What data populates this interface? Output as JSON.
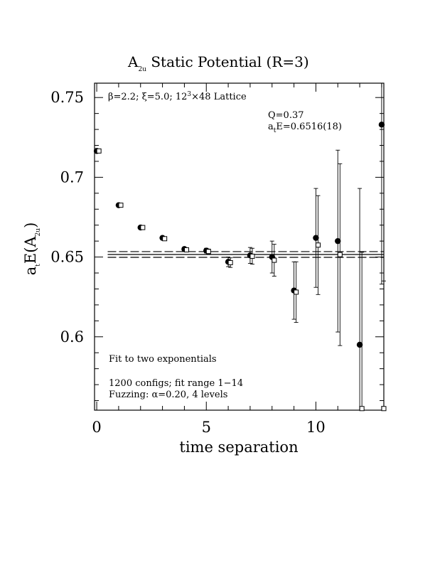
{
  "chart_data": {
    "type": "scatter",
    "title": "A2u Static Potential (R=3)",
    "title_parts": {
      "base": "A",
      "sub": "2u",
      "rest": " Static Potential (R=3)"
    },
    "xlabel": "time separation",
    "ylabel_parts": {
      "a": "a",
      "a_sub": "t",
      "mid": "E(A",
      "sub": "2u",
      "end": ")"
    },
    "xlim": [
      -0.1,
      13.1
    ],
    "ylim": [
      0.554,
      0.759
    ],
    "x_ticks": [
      0,
      5,
      10
    ],
    "x_tick_labels": [
      "0",
      "5",
      "10"
    ],
    "y_ticks": [
      0.6,
      0.65,
      0.7,
      0.75
    ],
    "y_tick_labels": [
      "0.6",
      "0.65",
      "0.7",
      "0.75"
    ],
    "grid": false,
    "annotation_lattice": {
      "beta": "β=2.2; ",
      "xi": "ξ=5.0; ",
      "size": "12",
      "sup": "3",
      "rest": "×48 Lattice"
    },
    "annotation_Q": "Q=0.37",
    "annotation_fit_energy": {
      "a": "a",
      "sub": "t",
      "rest": "E=0.6516(18)"
    },
    "annotation_method": "Fit to two exponentials",
    "annotation_configs": "1200 configs; fit range 1−14",
    "annotation_fuzzing": "Fuzzing: α=0.20, 4 levels",
    "fit": {
      "value": 0.6516,
      "error": 0.0018,
      "x_range": [
        0.5,
        13.1
      ]
    },
    "series": [
      {
        "marker": "filled-circle",
        "x": [
          0,
          1,
          2,
          3,
          4,
          5,
          6,
          7,
          8,
          9,
          10,
          11,
          12,
          13
        ],
        "y": [
          0.7165,
          0.6825,
          0.6685,
          0.662,
          0.655,
          0.654,
          0.647,
          0.651,
          0.65,
          0.629,
          0.662,
          0.66,
          0.595,
          0.733
        ],
        "err": [
          0.001,
          0.001,
          0.001,
          0.001,
          0.001,
          0.0015,
          0.003,
          0.005,
          0.01,
          0.018,
          0.031,
          0.057,
          0.098,
          0.1
        ]
      },
      {
        "marker": "open-square",
        "x": [
          0.1,
          1.1,
          2.1,
          3.1,
          4.1,
          5.1,
          6.1,
          7.1,
          8.1,
          9.1,
          10.1,
          11.1,
          12.1,
          13.1
        ],
        "y": [
          0.7165,
          0.6825,
          0.6685,
          0.6615,
          0.6545,
          0.6535,
          0.6465,
          0.6505,
          0.648,
          0.628,
          0.6575,
          0.6515,
          0.555,
          0.555
        ],
        "err": [
          0.001,
          0.001,
          0.001,
          0.001,
          0.001,
          0.0015,
          0.003,
          0.005,
          0.01,
          0.019,
          0.031,
          0.057,
          0.098,
          0.08
        ]
      }
    ]
  }
}
